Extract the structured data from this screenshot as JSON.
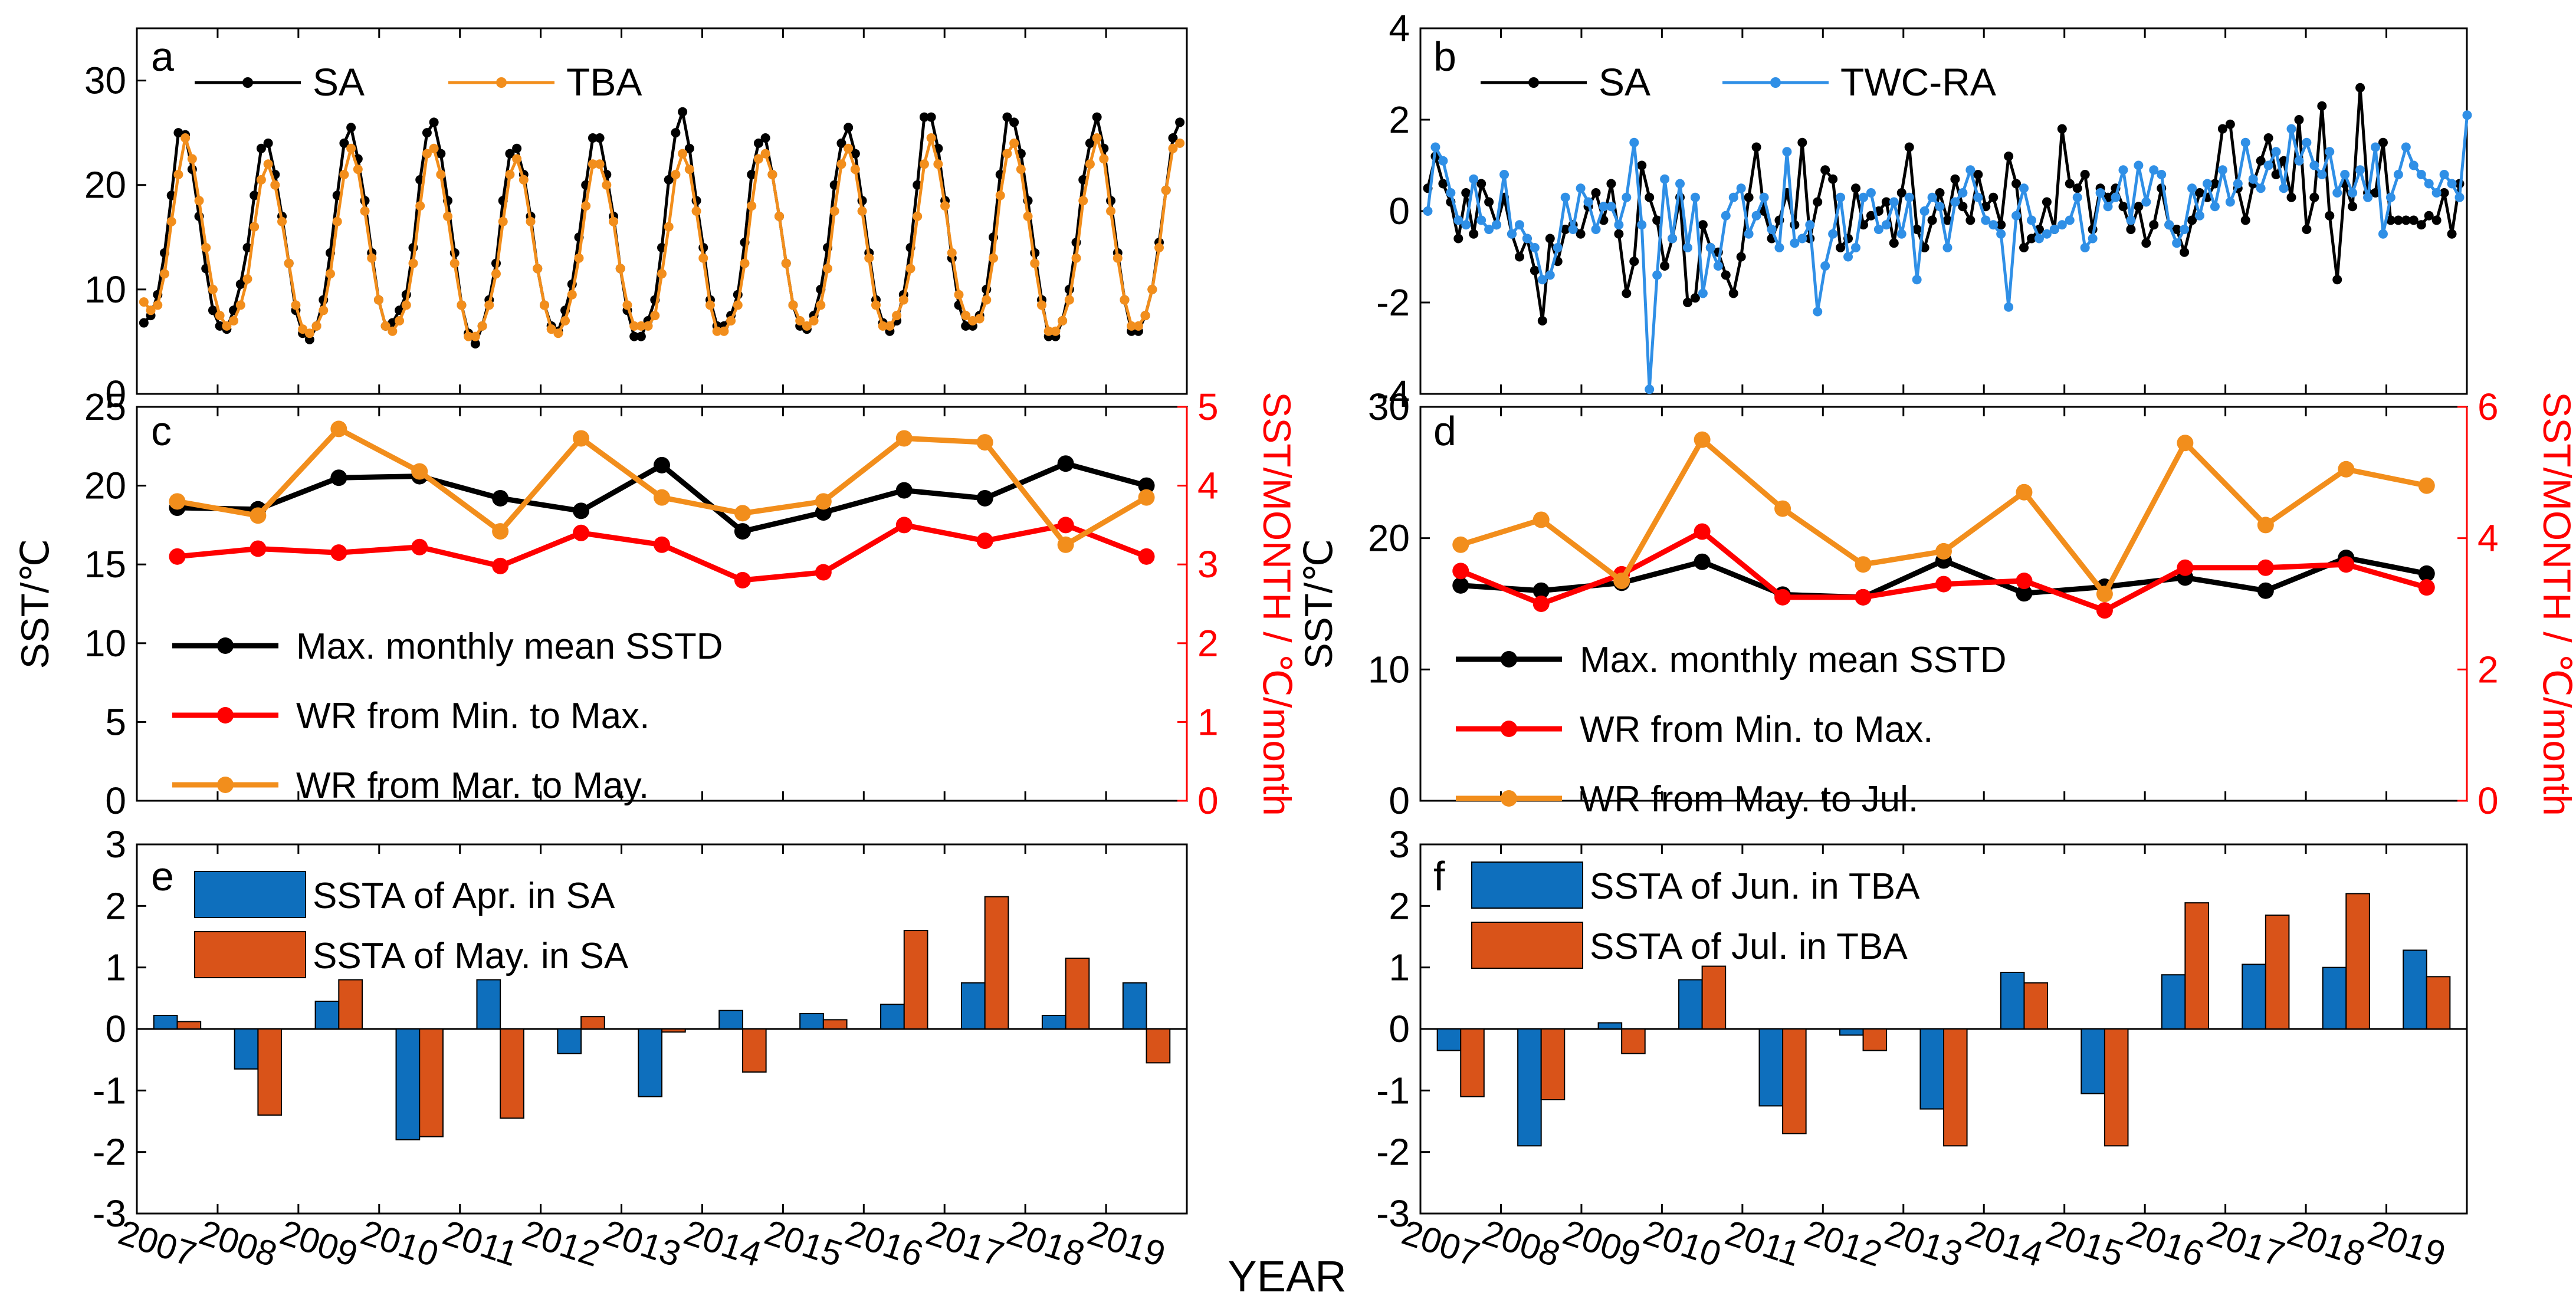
{
  "x_axis_label": "YEAR",
  "year_ticks": [
    "2007",
    "2008",
    "2009",
    "2010",
    "2011",
    "2012",
    "2013",
    "2014",
    "2015",
    "2016",
    "2017",
    "2018",
    "2019"
  ],
  "colors": {
    "sa": "#000000",
    "tba": "#f28e1c",
    "twc": "#2f8fe6",
    "wr": "#ff0000",
    "blue": "#0e6fbd",
    "orange": "#d95319"
  },
  "chart_data": [
    {
      "id": "a",
      "type": "line",
      "panel_label": "a",
      "ylim": [
        0,
        35
      ],
      "yticks": [
        "0",
        "10",
        "20",
        "30"
      ],
      "series": [
        {
          "name": "SA",
          "color": "#000000",
          "values": [
            6.8,
            7.5,
            9.5,
            13.5,
            19,
            25,
            24.8,
            21.5,
            17,
            12,
            8,
            6.5,
            6.2,
            8,
            10.5,
            14,
            19,
            23.5,
            24,
            21,
            17,
            12.5,
            8,
            5.8,
            5.2,
            6.5,
            9,
            13.5,
            19,
            24,
            25.5,
            22.5,
            18.5,
            13.5,
            9,
            6.5,
            6.8,
            8,
            9.5,
            14,
            20.5,
            25,
            26,
            23,
            18.5,
            13.5,
            8.5,
            5.8,
            4.8,
            6.5,
            9,
            12.5,
            18.5,
            23,
            23.5,
            21,
            17,
            12,
            8.5,
            6.5,
            6,
            8,
            10.5,
            15,
            20,
            24.5,
            24.5,
            21,
            17,
            12,
            8,
            5.5,
            5.5,
            7,
            9,
            14,
            20.5,
            25,
            27,
            23.5,
            18.5,
            14,
            9,
            6.5,
            6.5,
            7.5,
            9.5,
            14.5,
            21,
            24,
            24.5,
            21,
            17,
            12.5,
            8.5,
            6.5,
            6.2,
            7.5,
            10,
            14,
            20,
            24,
            25.5,
            23,
            18.5,
            13.5,
            9,
            6.8,
            6,
            7,
            9.5,
            14,
            20,
            26.5,
            26.5,
            23.5,
            18.5,
            13,
            8.5,
            6.5,
            6.5,
            7.5,
            10,
            15,
            21,
            26.5,
            26,
            23,
            18.5,
            13.5,
            9,
            5.5,
            5.5,
            7,
            10,
            14.5,
            20.5,
            24,
            26.5,
            23.5,
            18.5,
            13.5,
            9,
            6,
            6,
            7.5,
            10,
            14.5,
            19.5,
            24.5,
            26
          ]
        },
        {
          "name": "TBA",
          "color": "#f28e1c",
          "values": [
            8.8,
            8,
            8.5,
            11.5,
            16.5,
            21,
            24.5,
            22.5,
            18.5,
            14,
            10,
            7.5,
            6.5,
            7,
            8.5,
            11,
            16,
            20.5,
            22,
            20,
            16.5,
            12.5,
            8.5,
            6.2,
            5.8,
            6.5,
            8,
            11.5,
            16.5,
            21,
            23.5,
            21.5,
            17.5,
            13,
            9,
            6.5,
            6,
            7,
            8.5,
            12.5,
            18,
            23,
            23.5,
            21,
            17,
            12.5,
            8.5,
            5.5,
            5.5,
            6.5,
            8.5,
            11.5,
            16.5,
            21,
            22.5,
            20.5,
            16.5,
            12,
            8.5,
            6.2,
            5.8,
            7,
            9.5,
            13,
            18,
            22,
            22,
            20,
            16.5,
            12,
            8.5,
            6.5,
            6.5,
            6.5,
            7.5,
            11.5,
            16,
            21,
            23,
            21.5,
            17.5,
            13,
            8.5,
            6,
            6,
            7,
            8.5,
            12.5,
            18,
            22.5,
            23,
            21,
            17,
            12.5,
            8.5,
            7,
            6.5,
            7,
            8.5,
            12,
            17.5,
            22,
            23.5,
            21.5,
            17.5,
            13,
            8.5,
            6.5,
            6.5,
            7.5,
            9,
            12,
            17,
            22,
            24.5,
            22,
            18,
            13.5,
            9.5,
            7.5,
            7,
            7.2,
            9,
            13,
            19,
            23,
            24,
            21.5,
            17,
            12.5,
            8.5,
            6,
            6,
            7,
            9,
            13,
            18.5,
            22,
            24.5,
            22.5,
            17.5,
            13,
            9,
            6.5,
            6.5,
            7.5,
            10,
            14,
            19.5,
            23.5,
            24
          ]
        }
      ],
      "legend": [
        "SA",
        "TBA"
      ]
    },
    {
      "id": "b",
      "type": "line",
      "panel_label": "b",
      "ylim": [
        -4,
        4
      ],
      "yticks": [
        "-4",
        "-2",
        "0",
        "2",
        "4"
      ],
      "series": [
        {
          "name": "SA",
          "color": "#000000",
          "values": [
            0.5,
            1.2,
            0.6,
            0.2,
            -0.6,
            0.4,
            -0.5,
            0.6,
            0.2,
            -0.3,
            0.3,
            -0.5,
            -1,
            -0.6,
            -1.3,
            -2.4,
            -0.6,
            -1.1,
            -0.4,
            -0.3,
            -0.5,
            0.1,
            0.4,
            -0.2,
            0.6,
            -0.5,
            -1.8,
            -1.1,
            1,
            0.3,
            -0.2,
            -1.2,
            -0.6,
            0.3,
            -2,
            -1.9,
            -0.3,
            -0.8,
            -0.9,
            -1.4,
            -1.8,
            -1,
            0.3,
            1.4,
            0,
            -0.6,
            -0.2,
            0.4,
            -0.3,
            1.5,
            -0.6,
            0.2,
            0.9,
            0.7,
            -0.8,
            -0.6,
            0.5,
            -0.3,
            -0.1,
            0,
            0.2,
            -0.7,
            0.4,
            1.4,
            -0.4,
            -0.8,
            -0.2,
            0.4,
            -0.2,
            0.7,
            0.1,
            -0.2,
            0.8,
            0.1,
            0.3,
            -0.3,
            1.2,
            0.6,
            -0.8,
            -0.6,
            -0.4,
            0.2,
            -0.4,
            1.8,
            0.6,
            0.5,
            0.8,
            -0.4,
            0.5,
            0.3,
            0.5,
            0.1,
            -0.4,
            0.1,
            -0.7,
            -0.3,
            0.5,
            -0.3,
            -0.4,
            -0.9,
            -0.2,
            0.4,
            0.3,
            0.6,
            1.8,
            1.9,
            0.5,
            -0.2,
            0.6,
            1.1,
            1.6,
            0.8,
            1.1,
            0.3,
            2,
            -0.4,
            0.3,
            2.3,
            -0.1,
            -1.5,
            0.6,
            0.1,
            2.7,
            0.4,
            0.4,
            1.5,
            -0.2,
            -0.2,
            -0.2,
            -0.2,
            -0.3,
            -0.1,
            -0.2,
            0.4,
            -0.5,
            0.6
          ]
        },
        {
          "name": "TWC-RA",
          "color": "#2f8fe6",
          "values": [
            0,
            1.4,
            1.1,
            0.4,
            -0.2,
            -0.3,
            0.7,
            -0.2,
            -0.4,
            -0.3,
            0.8,
            -0.5,
            -0.3,
            -0.6,
            -0.8,
            -1.5,
            -1.4,
            -0.8,
            0.3,
            -0.4,
            0.5,
            0.2,
            -0.4,
            0.1,
            0.1,
            -0.3,
            0.3,
            1.5,
            -0.3,
            -3.9,
            -1.4,
            0.7,
            -0.6,
            0.6,
            -0.8,
            0.3,
            -1.8,
            -0.8,
            -1.2,
            -0.1,
            0.3,
            0.5,
            -0.5,
            -0.1,
            0.3,
            -0.4,
            -0.8,
            1.3,
            -0.7,
            -0.6,
            -0.3,
            -2.2,
            -1.2,
            -0.5,
            0.3,
            -1,
            -0.8,
            0.3,
            0.4,
            -0.4,
            -0.3,
            0.2,
            -0.5,
            0.3,
            -1.5,
            0,
            0.3,
            0.1,
            -0.8,
            0.2,
            0.4,
            0.9,
            0.3,
            -0.2,
            -0.3,
            -0.5,
            -2.1,
            -0.1,
            0.5,
            -0.2,
            -0.6,
            -0.5,
            -0.4,
            -0.3,
            -0.2,
            0.3,
            -0.8,
            -0.6,
            0.4,
            0.1,
            0.3,
            0.9,
            -0.2,
            1,
            0.2,
            0.9,
            0.8,
            -0.3,
            -0.7,
            -0.4,
            0.5,
            -0.1,
            0.6,
            0.1,
            0.9,
            0.2,
            0.6,
            1.5,
            0.7,
            0.5,
            1,
            1.3,
            0.5,
            1.8,
            1.1,
            1.5,
            1,
            0.8,
            1.3,
            0.4,
            0.8,
            0.4,
            0.9,
            0.3,
            1.4,
            -0.5,
            0.3,
            0.8,
            1.4,
            1,
            0.8,
            0.6,
            0.4,
            0.8,
            0.6,
            0.3,
            2.1
          ]
        }
      ],
      "legend": [
        "SA",
        "TWC-RA"
      ]
    },
    {
      "id": "c",
      "type": "line",
      "panel_label": "c",
      "x": [
        "2007",
        "2008",
        "2009",
        "2010",
        "2011",
        "2012",
        "2013",
        "2014",
        "2015",
        "2016",
        "2017",
        "2018",
        "2019"
      ],
      "ylim": [
        0,
        25
      ],
      "yticks": [
        "0",
        "5",
        "10",
        "15",
        "20",
        "25"
      ],
      "ylim_right": [
        0,
        5
      ],
      "yticks_right": [
        "0",
        "1",
        "2",
        "3",
        "4",
        "5"
      ],
      "ylabel": "SST/℃",
      "ylabel_right": "SST/MONTH / ℃/month",
      "series": [
        {
          "name": "Max. monthly mean SSTD",
          "axis": "left",
          "color": "#000000",
          "values": [
            18.6,
            18.5,
            20.5,
            20.6,
            19.2,
            18.4,
            21.3,
            17.1,
            18.3,
            19.7,
            19.2,
            21.4,
            20
          ]
        },
        {
          "name": "WR from Min. to Max.",
          "axis": "right",
          "color": "#ff0000",
          "values": [
            3.1,
            3.2,
            3.15,
            3.22,
            2.98,
            3.4,
            3.25,
            2.8,
            2.9,
            3.5,
            3.3,
            3.5,
            3.1
          ]
        },
        {
          "name": "WR from Mar. to May.",
          "axis": "right",
          "color": "#f28e1c",
          "values": [
            3.8,
            3.62,
            4.72,
            4.18,
            3.42,
            4.6,
            3.85,
            3.65,
            3.8,
            4.6,
            4.55,
            3.25,
            3.85
          ]
        }
      ]
    },
    {
      "id": "d",
      "type": "line",
      "panel_label": "d",
      "x": [
        "2007",
        "2008",
        "2009",
        "2010",
        "2011",
        "2012",
        "2013",
        "2014",
        "2015",
        "2016",
        "2017",
        "2018",
        "2019"
      ],
      "ylim": [
        0,
        30
      ],
      "yticks": [
        "0",
        "10",
        "20",
        "30"
      ],
      "ylim_right": [
        0,
        6
      ],
      "yticks_right": [
        "0",
        "2",
        "4",
        "6"
      ],
      "ylabel": "SST/℃",
      "ylabel_right": "SST/MONTH / ℃/month",
      "series": [
        {
          "name": "Max. monthly mean SSTD",
          "axis": "left",
          "color": "#000000",
          "values": [
            16.4,
            16,
            16.6,
            18.2,
            15.7,
            15.5,
            18.3,
            15.8,
            16.3,
            17,
            16,
            18.5,
            17.3
          ]
        },
        {
          "name": "WR from Min. to Max.",
          "axis": "right",
          "color": "#ff0000",
          "values": [
            3.5,
            3,
            3.45,
            4.1,
            3.1,
            3.1,
            3.3,
            3.35,
            2.9,
            3.55,
            3.55,
            3.6,
            3.25
          ]
        },
        {
          "name": "WR from May. to Jul.",
          "axis": "right",
          "color": "#f28e1c",
          "values": [
            3.9,
            4.28,
            3.35,
            5.5,
            4.45,
            3.6,
            3.8,
            4.7,
            3.15,
            5.45,
            4.2,
            5.05,
            4.8
          ]
        }
      ]
    },
    {
      "id": "e",
      "type": "bar",
      "panel_label": "e",
      "categories": [
        "2007",
        "2008",
        "2009",
        "2010",
        "2011",
        "2012",
        "2013",
        "2014",
        "2015",
        "2016",
        "2017",
        "2018",
        "2019"
      ],
      "ylim": [
        -3,
        3
      ],
      "yticks": [
        "-3",
        "-2",
        "-1",
        "0",
        "1",
        "2",
        "3"
      ],
      "series": [
        {
          "name": "SSTA of Apr. in SA",
          "color": "#0e6fbd",
          "values": [
            0.22,
            -0.65,
            0.45,
            -1.8,
            0.8,
            -0.4,
            -1.1,
            0.3,
            0.25,
            0.4,
            0.75,
            0.22,
            0.75
          ]
        },
        {
          "name": "SSTA of May. in SA",
          "color": "#d95319",
          "values": [
            0.12,
            -1.4,
            0.8,
            -1.75,
            -1.45,
            0.2,
            -0.05,
            -0.7,
            0.15,
            1.6,
            2.15,
            1.15,
            -0.55
          ]
        }
      ]
    },
    {
      "id": "f",
      "type": "bar",
      "panel_label": "f",
      "categories": [
        "2007",
        "2008",
        "2009",
        "2010",
        "2011",
        "2012",
        "2013",
        "2014",
        "2015",
        "2016",
        "2017",
        "2018",
        "2019"
      ],
      "ylim": [
        -3,
        3
      ],
      "yticks": [
        "-3",
        "-2",
        "-1",
        "0",
        "1",
        "2",
        "3"
      ],
      "series": [
        {
          "name": "SSTA of Jun. in TBA",
          "color": "#0e6fbd",
          "values": [
            -0.35,
            -1.9,
            0.1,
            0.8,
            -1.25,
            -0.1,
            -1.3,
            0.92,
            -1.05,
            0.88,
            1.05,
            1,
            1.28
          ]
        },
        {
          "name": "SSTA of Jul. in TBA",
          "color": "#d95319",
          "values": [
            -1.1,
            -1.15,
            -0.4,
            1.02,
            -1.7,
            -0.35,
            -1.9,
            0.75,
            -1.9,
            2.05,
            1.85,
            2.2,
            0.85
          ]
        }
      ]
    }
  ]
}
